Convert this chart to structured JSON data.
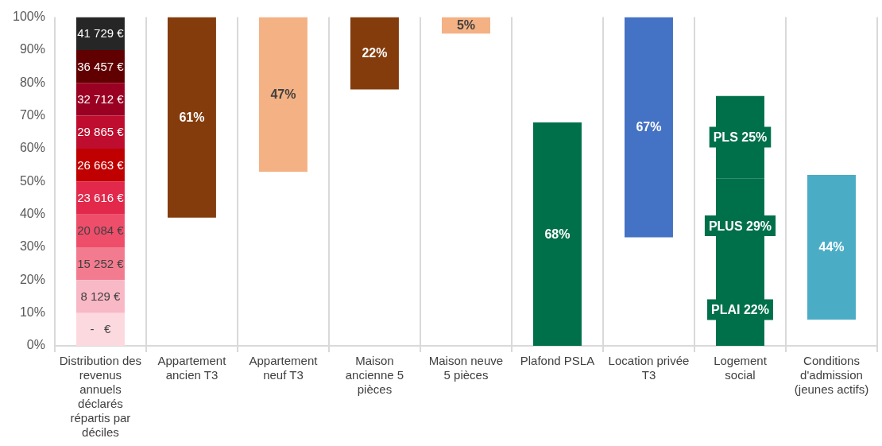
{
  "chart_data": {
    "type": "bar",
    "categories": [
      "Distribution des revenus annuels déclarés répartis par déciles",
      "Appartement ancien T3",
      "Appartement neuf T3",
      "Maison ancienne 5 pièces",
      "Maison neuve 5 pièces",
      "Plafond PSLA",
      "Location privée T3",
      "Logement social",
      "Conditions d'admission (jeunes actifs)"
    ],
    "ylim": [
      0,
      100
    ],
    "yticks": [
      {
        "value": 0,
        "label": "0%"
      },
      {
        "value": 10,
        "label": "10%"
      },
      {
        "value": 20,
        "label": "20%"
      },
      {
        "value": 30,
        "label": "30%"
      },
      {
        "value": 40,
        "label": "40%"
      },
      {
        "value": 50,
        "label": "50%"
      },
      {
        "value": 60,
        "label": "60%"
      },
      {
        "value": 70,
        "label": "70%"
      },
      {
        "value": 80,
        "label": "80%"
      },
      {
        "value": 90,
        "label": "90%"
      },
      {
        "value": 100,
        "label": "100%"
      }
    ],
    "grid": "x",
    "annotations": [
      "-   €",
      "8 129 €",
      "15 252 €",
      "20 084 €",
      "23 616 €",
      "26 663 €",
      "29 865 €",
      "32 712 €",
      "36 457 €",
      "41 729 €"
    ],
    "series": [
      {
        "color": "#fcd9df",
        "values": [
          10,
          null,
          null,
          null,
          null,
          null,
          null,
          null,
          null
        ],
        "base": [
          0,
          null,
          null,
          null,
          null,
          null,
          null,
          null,
          null
        ]
      },
      {
        "color": "#f8b8c6",
        "values": [
          10,
          null,
          null,
          null,
          null,
          null,
          null,
          null,
          null
        ],
        "base": [
          10,
          null,
          null,
          null,
          null,
          null,
          null,
          null,
          null
        ]
      },
      {
        "color": "#f37b8f",
        "values": [
          10,
          null,
          null,
          null,
          null,
          null,
          null,
          null,
          null
        ],
        "base": [
          20,
          null,
          null,
          null,
          null,
          null,
          null,
          null,
          null
        ]
      },
      {
        "color": "#ef4e6b",
        "values": [
          10,
          null,
          null,
          null,
          null,
          null,
          null,
          null,
          null
        ],
        "base": [
          30,
          null,
          null,
          null,
          null,
          null,
          null,
          null,
          null
        ]
      },
      {
        "color": "#e2294b",
        "values": [
          10,
          null,
          null,
          null,
          null,
          null,
          null,
          null,
          null
        ],
        "base": [
          40,
          null,
          null,
          null,
          null,
          null,
          null,
          null,
          null
        ]
      },
      {
        "color": "#c00000",
        "values": [
          10,
          null,
          null,
          null,
          null,
          null,
          null,
          null,
          null
        ],
        "base": [
          50,
          null,
          null,
          null,
          null,
          null,
          null,
          null,
          null
        ]
      },
      {
        "color": "#be0d2e",
        "values": [
          10,
          null,
          null,
          null,
          null,
          null,
          null,
          null,
          null
        ],
        "base": [
          60,
          null,
          null,
          null,
          null,
          null,
          null,
          null,
          null
        ]
      },
      {
        "color": "#990022",
        "values": [
          10,
          null,
          null,
          null,
          null,
          null,
          null,
          null,
          null
        ],
        "base": [
          70,
          null,
          null,
          null,
          null,
          null,
          null,
          null,
          null
        ]
      },
      {
        "color": "#600000",
        "values": [
          10,
          null,
          null,
          null,
          null,
          null,
          null,
          null,
          null
        ],
        "base": [
          80,
          null,
          null,
          null,
          null,
          null,
          null,
          null,
          null
        ]
      },
      {
        "color": "#262626",
        "values": [
          10,
          null,
          null,
          null,
          null,
          null,
          null,
          null,
          null
        ],
        "base": [
          90,
          null,
          null,
          null,
          null,
          null,
          null,
          null,
          null
        ]
      },
      {
        "color": "#843c0c",
        "values": [
          null,
          61,
          null,
          22,
          null,
          null,
          null,
          null,
          null
        ],
        "base": [
          null,
          39,
          null,
          78,
          null,
          null,
          null,
          null,
          null
        ],
        "value_labels": [
          null,
          "61%",
          null,
          "22%",
          null,
          null,
          null,
          null,
          null
        ]
      },
      {
        "color": "#f4b183",
        "values": [
          null,
          null,
          47,
          null,
          5,
          null,
          null,
          null,
          null
        ],
        "base": [
          null,
          null,
          53,
          null,
          95,
          null,
          null,
          null,
          null
        ],
        "value_labels": [
          null,
          null,
          "47%",
          null,
          "5%",
          null,
          null,
          null,
          null
        ]
      },
      {
        "color": "#00704a",
        "values": [
          null,
          null,
          null,
          null,
          null,
          68,
          null,
          22,
          null
        ],
        "base": [
          null,
          null,
          null,
          null,
          null,
          0,
          null,
          0,
          null
        ],
        "value_labels": [
          null,
          null,
          null,
          null,
          null,
          "68%",
          null,
          "PLAI 22%",
          null
        ]
      },
      {
        "color": "#4472c4",
        "values": [
          null,
          null,
          null,
          null,
          null,
          null,
          67,
          null,
          null
        ],
        "base": [
          null,
          null,
          null,
          null,
          null,
          null,
          33,
          null,
          null
        ],
        "value_labels": [
          null,
          null,
          null,
          null,
          null,
          null,
          "67%",
          null,
          null
        ]
      },
      {
        "color": "#00704a",
        "values": [
          null,
          null,
          null,
          null,
          null,
          null,
          null,
          29,
          null
        ],
        "base": [
          null,
          null,
          null,
          null,
          null,
          null,
          null,
          22,
          null
        ],
        "value_labels": [
          null,
          null,
          null,
          null,
          null,
          null,
          null,
          "PLUS 29%",
          null
        ]
      },
      {
        "color": "#00704a",
        "values": [
          null,
          null,
          null,
          null,
          null,
          null,
          null,
          25,
          null
        ],
        "base": [
          null,
          null,
          null,
          null,
          null,
          null,
          null,
          51,
          null
        ],
        "value_labels": [
          null,
          null,
          null,
          null,
          null,
          null,
          null,
          "PLS 25%",
          null
        ]
      },
      {
        "color": "#4bacc6",
        "values": [
          null,
          null,
          null,
          null,
          null,
          null,
          null,
          null,
          44
        ],
        "base": [
          null,
          null,
          null,
          null,
          null,
          null,
          null,
          null,
          8
        ],
        "value_labels": [
          null,
          null,
          null,
          null,
          null,
          null,
          null,
          null,
          "44%"
        ]
      }
    ]
  }
}
